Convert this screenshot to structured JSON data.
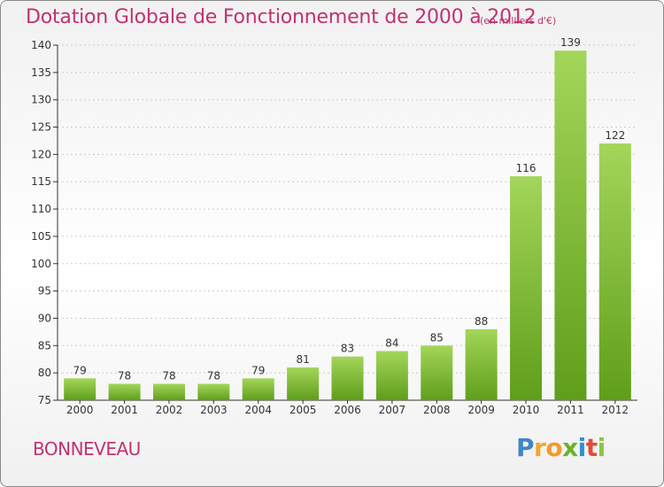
{
  "header": {
    "title": "Dotation Globale de Fonctionnement de 2000 à 2012",
    "subtitle": "(en milliers d'€)"
  },
  "footer": {
    "commune": "BONNEVEAU",
    "logo": "Proxiti"
  },
  "colors": {
    "title": "#c0336f",
    "bar_top": "#a3d65a",
    "bar_bottom": "#5f9e1a",
    "grid": "#cccccc",
    "axis": "#333333"
  },
  "chart_data": {
    "type": "bar",
    "title": "Dotation Globale de Fonctionnement de 2000 à 2012",
    "subtitle": "(en milliers d'€)",
    "xlabel": "",
    "ylabel": "",
    "categories": [
      "2000",
      "2001",
      "2002",
      "2003",
      "2004",
      "2005",
      "2006",
      "2007",
      "2008",
      "2009",
      "2010",
      "2011",
      "2012"
    ],
    "values": [
      79,
      78,
      78,
      78,
      79,
      81,
      83,
      84,
      85,
      88,
      116,
      139,
      122
    ],
    "ylim": [
      75,
      140
    ],
    "ytick_step": 5,
    "grid": true,
    "data_labels": true
  }
}
